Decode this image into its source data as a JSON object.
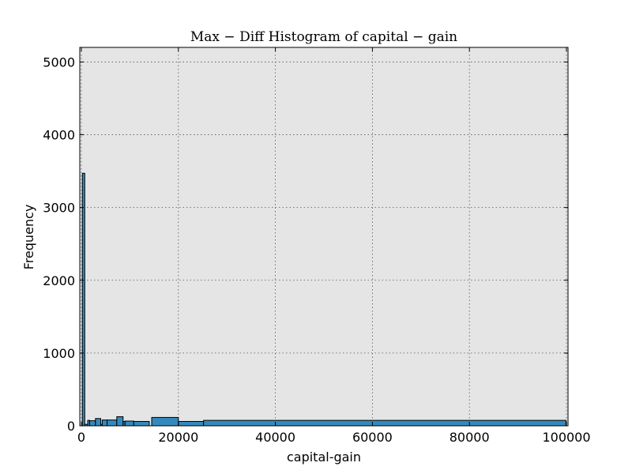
{
  "chart_data": {
    "type": "bar",
    "title": "Max − Diff Histogram of capital − gain",
    "xlabel": "capital-gain",
    "ylabel": "Frequency",
    "xlim": [
      0,
      100000
    ],
    "ylim": [
      0,
      5200
    ],
    "xticks": [
      0,
      20000,
      40000,
      60000,
      80000,
      100000
    ],
    "yticks": [
      0,
      1000,
      2000,
      3000,
      4000,
      5000
    ],
    "grid": true,
    "colors": {
      "bar": "#348abd",
      "background": "#e5e5e5",
      "edge": "#000000"
    },
    "bins": [
      {
        "x0": 200,
        "x1": 700,
        "count": 3470
      },
      {
        "x0": 700,
        "x1": 1300,
        "count": 20
      },
      {
        "x0": 1300,
        "x1": 1700,
        "count": 75
      },
      {
        "x0": 1700,
        "x1": 2900,
        "count": 70
      },
      {
        "x0": 2900,
        "x1": 4000,
        "count": 100
      },
      {
        "x0": 4000,
        "x1": 4300,
        "count": 20
      },
      {
        "x0": 4300,
        "x1": 5300,
        "count": 80
      },
      {
        "x0": 5300,
        "x1": 7300,
        "count": 80
      },
      {
        "x0": 7300,
        "x1": 8600,
        "count": 125
      },
      {
        "x0": 8600,
        "x1": 9000,
        "count": 60
      },
      {
        "x0": 9000,
        "x1": 10800,
        "count": 65
      },
      {
        "x0": 10800,
        "x1": 14000,
        "count": 60
      },
      {
        "x0": 14000,
        "x1": 14500,
        "count": 0
      },
      {
        "x0": 14500,
        "x1": 20000,
        "count": 115
      },
      {
        "x0": 20000,
        "x1": 25200,
        "count": 60
      },
      {
        "x0": 25200,
        "x1": 99900,
        "count": 75
      }
    ]
  }
}
